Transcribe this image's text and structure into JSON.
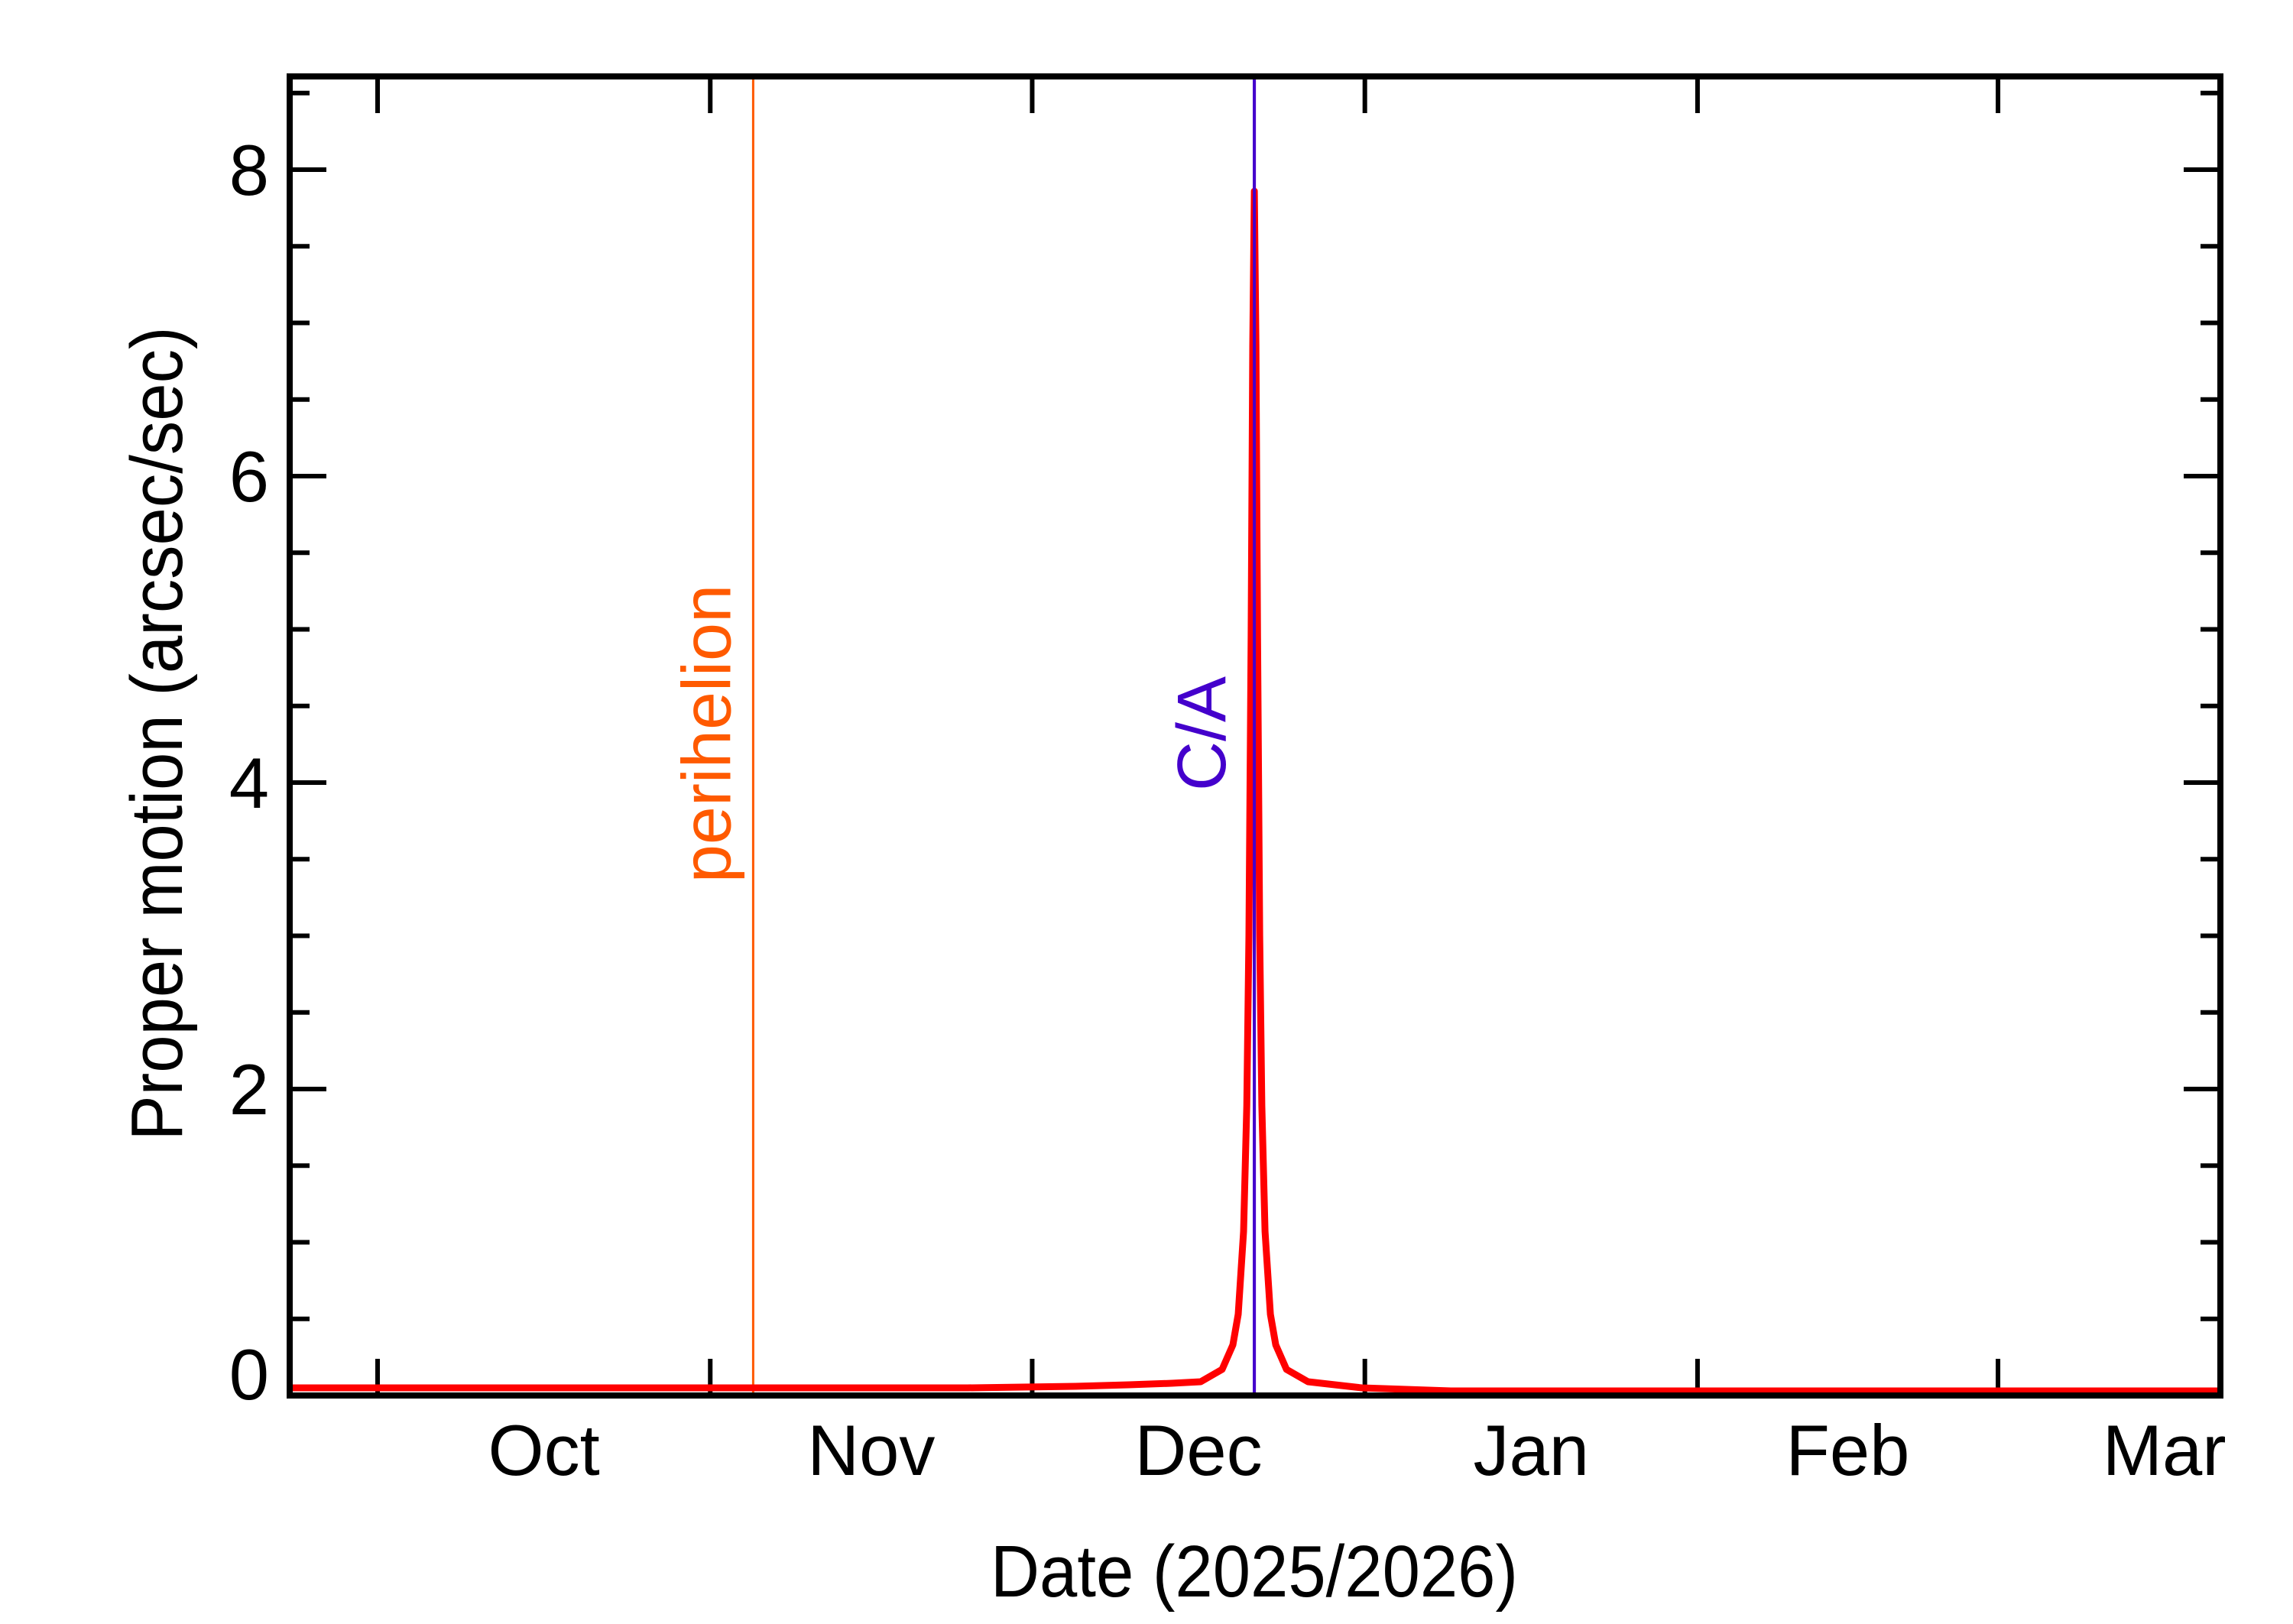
{
  "chart_data": {
    "type": "line",
    "title": "",
    "xlabel": "Date (2025/2026)",
    "ylabel": "Proper motion (arcsec/sec)",
    "x_unit": "days since 2025-10-01",
    "xlim": [
      -8.3,
      171.6
    ],
    "ylim": [
      0,
      8.6
    ],
    "grid": false,
    "legend": null,
    "x_ticks": [
      {
        "label": "Oct",
        "tick_day": 0,
        "label_day": 15.5
      },
      {
        "label": "Nov",
        "tick_day": 31,
        "label_day": 46
      },
      {
        "label": "Dec",
        "tick_day": 61,
        "label_day": 76.5
      },
      {
        "label": "Jan",
        "tick_day": 92,
        "label_day": 107.5
      },
      {
        "label": "Feb",
        "tick_day": 123,
        "label_day": 137
      },
      {
        "label": "Mar",
        "tick_day": 151,
        "label_day": 166.5
      }
    ],
    "y_ticks": [
      0,
      2,
      4,
      6,
      8
    ],
    "y_minor_step": 0.5,
    "series": [
      {
        "name": "Proper motion",
        "color": "#ff0000",
        "x": [
          -8.3,
          0,
          20,
          40,
          55,
          65,
          70,
          74,
          76.7,
          78.7,
          79.7,
          80.2,
          80.7,
          81.0,
          81.2,
          81.4,
          81.55,
          81.7,
          81.85,
          82.0,
          82.2,
          82.4,
          82.7,
          83.2,
          83.7,
          84.7,
          86.7,
          91.7,
          100,
          120,
          140,
          160,
          171.6
        ],
        "values": [
          0.05,
          0.05,
          0.05,
          0.05,
          0.05,
          0.06,
          0.07,
          0.08,
          0.09,
          0.17,
          0.33,
          0.53,
          1.07,
          1.89,
          3.0,
          4.96,
          6.85,
          7.86,
          6.85,
          4.96,
          3.0,
          1.89,
          1.07,
          0.53,
          0.33,
          0.17,
          0.09,
          0.05,
          0.03,
          0.03,
          0.03,
          0.03,
          0.03
        ]
      }
    ],
    "annotations": [
      {
        "label": "perihelion",
        "day": 35,
        "color": "#ff5a00",
        "orientation": "vertical"
      },
      {
        "label": "C/A",
        "day": 81.7,
        "color": "#4400cc",
        "orientation": "vertical"
      }
    ],
    "peak_value": 7.86
  },
  "labels": {
    "xlabel": "Date (2025/2026)",
    "ylabel": "Proper motion (arcsec/sec)",
    "perihelion": "perihelion",
    "ca": "C/A",
    "y_tick_labels": [
      "0",
      "2",
      "4",
      "6",
      "8"
    ],
    "x_tick_labels": [
      "Oct",
      "Nov",
      "Dec",
      "Jan",
      "Feb",
      "Mar"
    ]
  },
  "colors": {
    "curve": "#ff0000",
    "perihelion": "#ff5a00",
    "ca": "#4400cc",
    "axis": "#000000"
  }
}
